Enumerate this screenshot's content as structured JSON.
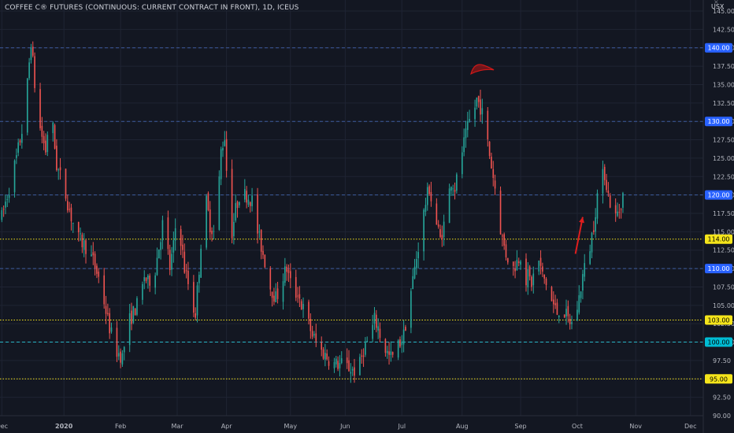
{
  "header": {
    "title": "COFFEE C® FUTURES (CONTINUOUS: CURRENT CONTRACT IN FRONT), 1D, ICEUS",
    "currency": "USX",
    "close_label": "×"
  },
  "chart_data": {
    "type": "candlestick",
    "y_ticks": [
      "145.00",
      "142.50",
      "140.00",
      "137.50",
      "135.00",
      "132.50",
      "130.00",
      "127.50",
      "125.00",
      "122.50",
      "120.00",
      "117.50",
      "115.00",
      "112.50",
      "110.00",
      "107.50",
      "105.00",
      "102.50",
      "100.00",
      "97.50",
      "95.00",
      "92.50",
      "90.00"
    ],
    "ylim": [
      90,
      146.5
    ],
    "x_labels": [
      {
        "label": "Dec",
        "bold": false
      },
      {
        "label": "2020",
        "bold": true
      },
      {
        "label": "Feb",
        "bold": false
      },
      {
        "label": "Mar",
        "bold": false
      },
      {
        "label": "Apr",
        "bold": false
      },
      {
        "label": "May",
        "bold": false
      },
      {
        "label": "Jun",
        "bold": false
      },
      {
        "label": "Jul",
        "bold": false
      },
      {
        "label": "Aug",
        "bold": false
      },
      {
        "label": "Sep",
        "bold": false
      },
      {
        "label": "Oct",
        "bold": false
      },
      {
        "label": "Nov",
        "bold": false
      },
      {
        "label": "Dec",
        "bold": false
      }
    ],
    "x_label_days": [
      0,
      34,
      65,
      96,
      123,
      158,
      188,
      219,
      252,
      284,
      315,
      347,
      377
    ],
    "xlim_days": [
      -1,
      384
    ],
    "horizontal_lines": [
      {
        "value": 140,
        "label": "140.00",
        "color": "#3d5b9e",
        "style": "dashed",
        "badge_bg": "#2962ff",
        "badge_fg": "#ffffff"
      },
      {
        "value": 130,
        "label": "130.00",
        "color": "#3d5b9e",
        "style": "dashed",
        "badge_bg": "#2962ff",
        "badge_fg": "#ffffff"
      },
      {
        "value": 120,
        "label": "120.00",
        "color": "#3d5b9e",
        "style": "dashed",
        "badge_bg": "#2962ff",
        "badge_fg": "#ffffff"
      },
      {
        "value": 114,
        "label": "114.00",
        "color": "#f5e51b",
        "style": "dotted",
        "badge_bg": "#f5e51b",
        "badge_fg": "#000000"
      },
      {
        "value": 110,
        "label": "110.00",
        "color": "#3d5b9e",
        "style": "dashed",
        "badge_bg": "#2962ff",
        "badge_fg": "#ffffff"
      },
      {
        "value": 103,
        "label": "103.00",
        "color": "#f5e51b",
        "style": "dotted",
        "badge_bg": "#f5e51b",
        "badge_fg": "#000000"
      },
      {
        "value": 100,
        "label": "100.00",
        "color": "#29b6c6",
        "style": "dashed",
        "badge_bg": "#00bcd4",
        "badge_fg": "#000000"
      },
      {
        "value": 95,
        "label": "95.00",
        "color": "#f5e51b",
        "style": "dotted",
        "badge_bg": "#f5e51b",
        "badge_fg": "#000000"
      }
    ],
    "anchors": [
      [
        0,
        117
      ],
      [
        4,
        121
      ],
      [
        8,
        125
      ],
      [
        12,
        130
      ],
      [
        14,
        135
      ],
      [
        16,
        141
      ],
      [
        18,
        135
      ],
      [
        20,
        130
      ],
      [
        22,
        128
      ],
      [
        24,
        126
      ],
      [
        26,
        131
      ],
      [
        28,
        129
      ],
      [
        30,
        124
      ],
      [
        34,
        121
      ],
      [
        38,
        117
      ],
      [
        42,
        114
      ],
      [
        46,
        113
      ],
      [
        50,
        111
      ],
      [
        54,
        108
      ],
      [
        58,
        103
      ],
      [
        62,
        99
      ],
      [
        66,
        98
      ],
      [
        68,
        101
      ],
      [
        70,
        103
      ],
      [
        72,
        104
      ],
      [
        76,
        106
      ],
      [
        78,
        109
      ],
      [
        80,
        108
      ],
      [
        84,
        110
      ],
      [
        88,
        116
      ],
      [
        90,
        114
      ],
      [
        92,
        110
      ],
      [
        94,
        113
      ],
      [
        96,
        118
      ],
      [
        98,
        114
      ],
      [
        100,
        110
      ],
      [
        102,
        108
      ],
      [
        104,
        105
      ],
      [
        106,
        104
      ],
      [
        108,
        110
      ],
      [
        110,
        117
      ],
      [
        112,
        119
      ],
      [
        114,
        116
      ],
      [
        116,
        115
      ],
      [
        118,
        118
      ],
      [
        120,
        126
      ],
      [
        122,
        128
      ],
      [
        124,
        119
      ],
      [
        126,
        115
      ],
      [
        128,
        118
      ],
      [
        130,
        120
      ],
      [
        134,
        120
      ],
      [
        138,
        119
      ],
      [
        140,
        115
      ],
      [
        142,
        113
      ],
      [
        144,
        111
      ],
      [
        146,
        108
      ],
      [
        148,
        107
      ],
      [
        150,
        106
      ],
      [
        152,
        107
      ],
      [
        154,
        109
      ],
      [
        156,
        110
      ],
      [
        158,
        108
      ],
      [
        160,
        106
      ],
      [
        162,
        107
      ],
      [
        164,
        105
      ],
      [
        166,
        104
      ],
      [
        170,
        101
      ],
      [
        174,
        99
      ],
      [
        178,
        98
      ],
      [
        182,
        97
      ],
      [
        186,
        97
      ],
      [
        190,
        96.5
      ],
      [
        194,
        96
      ],
      [
        196,
        97
      ],
      [
        198,
        99
      ],
      [
        202,
        101
      ],
      [
        204,
        103
      ],
      [
        206,
        102
      ],
      [
        208,
        100
      ],
      [
        210,
        99
      ],
      [
        212,
        98
      ],
      [
        214,
        98
      ],
      [
        216,
        99
      ],
      [
        218,
        100
      ],
      [
        220,
        101
      ],
      [
        222,
        104
      ],
      [
        224,
        107
      ],
      [
        226,
        110
      ],
      [
        228,
        113
      ],
      [
        230,
        116
      ],
      [
        232,
        119
      ],
      [
        234,
        121
      ],
      [
        236,
        118
      ],
      [
        238,
        116
      ],
      [
        240,
        114
      ],
      [
        242,
        116
      ],
      [
        244,
        119
      ],
      [
        246,
        122
      ],
      [
        248,
        121
      ],
      [
        250,
        123
      ],
      [
        252,
        126
      ],
      [
        254,
        128
      ],
      [
        256,
        130
      ],
      [
        258,
        131
      ],
      [
        260,
        133
      ],
      [
        262,
        132
      ],
      [
        264,
        130
      ],
      [
        266,
        127
      ],
      [
        268,
        124
      ],
      [
        270,
        121
      ],
      [
        272,
        117
      ],
      [
        274,
        114
      ],
      [
        276,
        112
      ],
      [
        278,
        111
      ],
      [
        280,
        110
      ],
      [
        282,
        111
      ],
      [
        284,
        112
      ],
      [
        286,
        108
      ],
      [
        288,
        109
      ],
      [
        290,
        108
      ],
      [
        292,
        110
      ],
      [
        294,
        111
      ],
      [
        296,
        109
      ],
      [
        298,
        108
      ],
      [
        300,
        106
      ],
      [
        302,
        105
      ],
      [
        304,
        104
      ],
      [
        306,
        105
      ],
      [
        308,
        104
      ],
      [
        310,
        103
      ],
      [
        312,
        102.5
      ],
      [
        314,
        103.5
      ],
      [
        316,
        106
      ],
      [
        318,
        109
      ],
      [
        320,
        111
      ],
      [
        322,
        113
      ],
      [
        324,
        116
      ],
      [
        326,
        120
      ],
      [
        328,
        122
      ],
      [
        330,
        123
      ],
      [
        332,
        120
      ],
      [
        334,
        118
      ],
      [
        336,
        117
      ],
      [
        338,
        118
      ],
      [
        340,
        120
      ],
      [
        342,
        123
      ]
    ],
    "arrow": {
      "from_day": 314,
      "from_value": 112,
      "to_day": 318,
      "to_value": 117
    },
    "dome": {
      "day": 262,
      "value": 137
    }
  }
}
